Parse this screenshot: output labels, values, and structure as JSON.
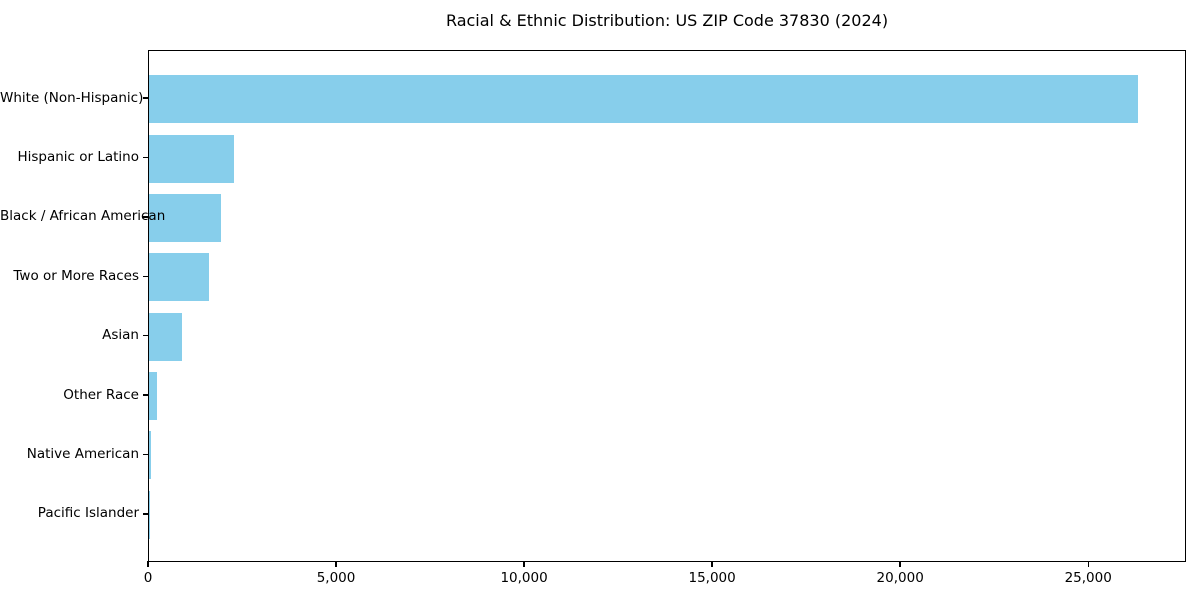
{
  "figure": {
    "background_color": "#ffffff",
    "text_color": "#000000"
  },
  "chart_data": {
    "type": "bar",
    "orientation": "horizontal",
    "title": "Racial & Ethnic Distribution: US ZIP Code 37830 (2024)",
    "categories": [
      "White (Non-Hispanic)",
      "Hispanic or Latino",
      "Black / African American",
      "Two or More Races",
      "Asian",
      "Other Race",
      "Native American",
      "Pacific Islander"
    ],
    "values": [
      26300,
      2260,
      1910,
      1590,
      880,
      210,
      40,
      15
    ],
    "xlabel": "",
    "ylabel": "",
    "xlim": [
      0,
      27600
    ],
    "xticks": [
      0,
      5000,
      10000,
      15000,
      20000,
      25000
    ],
    "xtick_labels": [
      "0",
      "5,000",
      "10,000",
      "15,000",
      "20,000",
      "25,000"
    ],
    "bar_color": "#87CEEB",
    "grid": false,
    "legend": "none"
  }
}
